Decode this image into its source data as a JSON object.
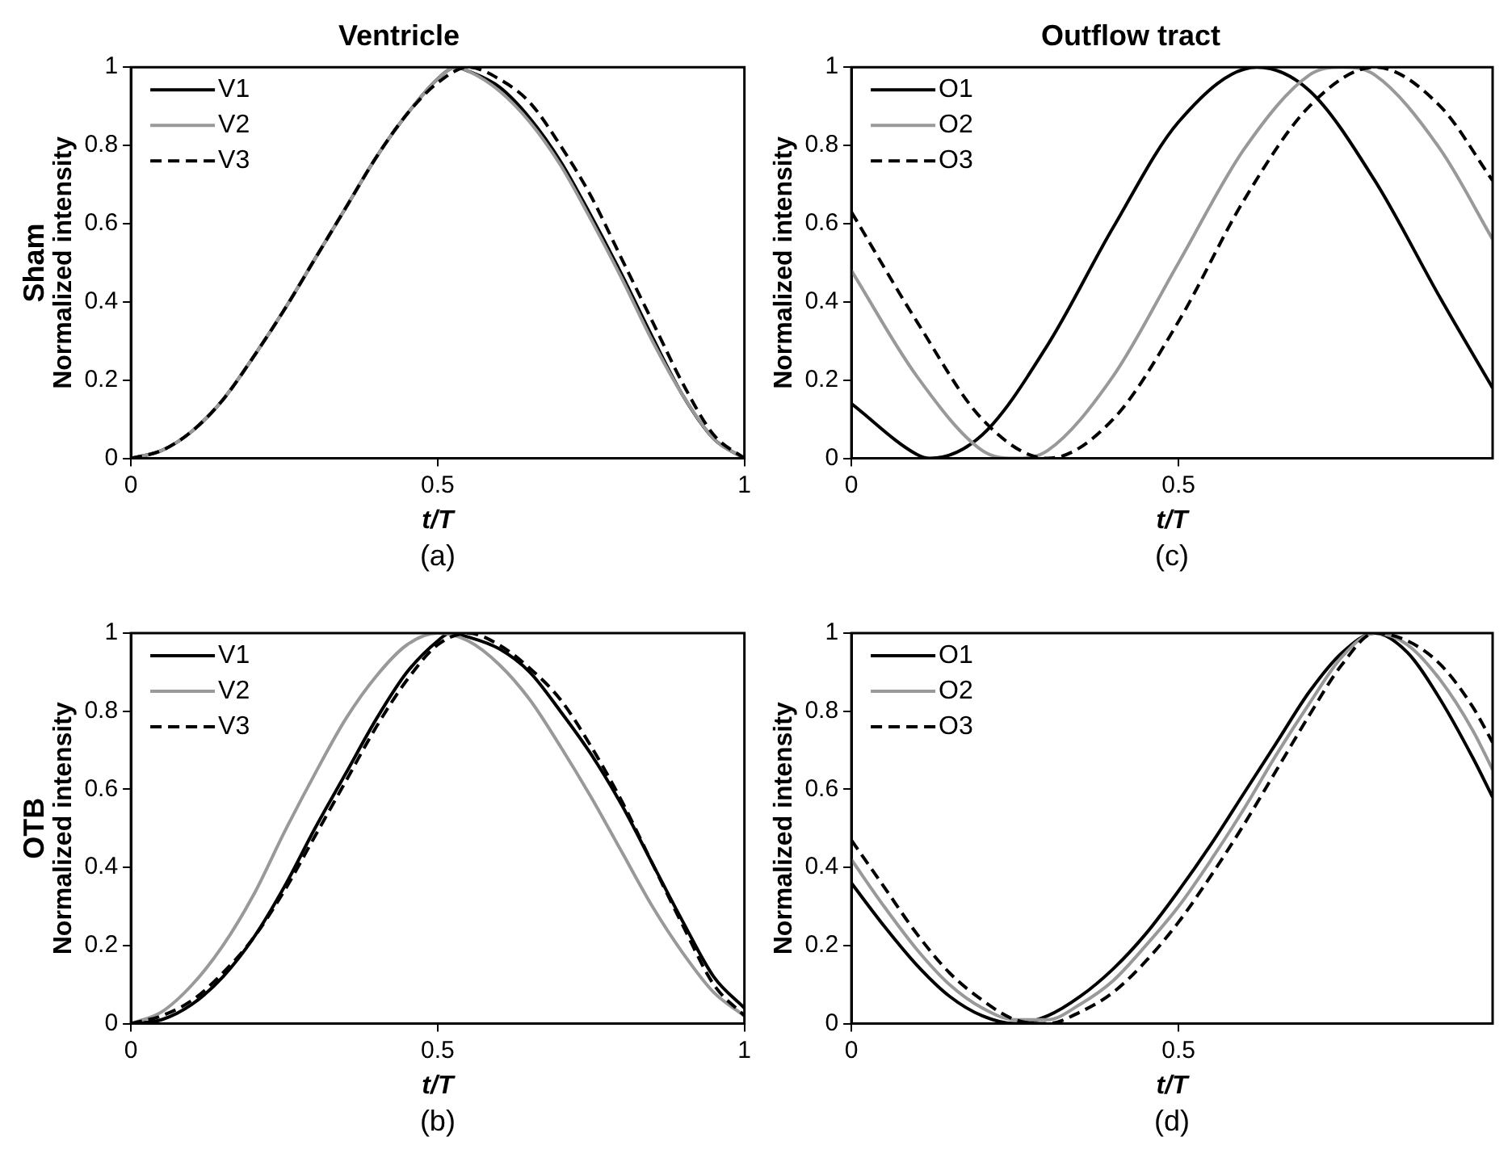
{
  "chart_data": [
    {
      "type": "line",
      "title": "Ventricle",
      "xlabel": "t/T",
      "ylabel": "Normalized intensity",
      "annotations": [
        "Sham",
        "(a)"
      ],
      "xlim": [
        0,
        1
      ],
      "xticks": [
        0,
        0.5,
        1
      ],
      "ylim": [
        0,
        1
      ],
      "yticks": [
        0,
        0.2,
        0.4,
        0.6,
        0.8,
        1
      ],
      "grid": false,
      "legend": "top left",
      "marker": "none",
      "series": [
        {
          "name": "V1",
          "color": "#000000",
          "line_style": "solid",
          "x": [
            0,
            0.05,
            0.1,
            0.15,
            0.2,
            0.25,
            0.3,
            0.35,
            0.4,
            0.45,
            0.5,
            0.53,
            0.55,
            0.6,
            0.65,
            0.7,
            0.75,
            0.8,
            0.85,
            0.9,
            0.95,
            1
          ],
          "values": [
            0,
            0.02,
            0.07,
            0.15,
            0.26,
            0.38,
            0.51,
            0.64,
            0.77,
            0.88,
            0.97,
            1,
            0.99,
            0.95,
            0.87,
            0.76,
            0.62,
            0.47,
            0.31,
            0.16,
            0.05,
            0
          ]
        },
        {
          "name": "V2",
          "color": "#999999",
          "line_style": "solid",
          "x": [
            0,
            0.05,
            0.1,
            0.15,
            0.2,
            0.25,
            0.3,
            0.35,
            0.4,
            0.45,
            0.5,
            0.53,
            0.55,
            0.6,
            0.65,
            0.7,
            0.75,
            0.8,
            0.85,
            0.9,
            0.95,
            1
          ],
          "values": [
            0,
            0.02,
            0.07,
            0.15,
            0.26,
            0.38,
            0.51,
            0.64,
            0.77,
            0.88,
            0.97,
            1,
            0.99,
            0.94,
            0.86,
            0.75,
            0.61,
            0.46,
            0.3,
            0.16,
            0.05,
            0
          ]
        },
        {
          "name": "V3",
          "color": "#000000",
          "line_style": "dashed",
          "x": [
            0,
            0.05,
            0.1,
            0.15,
            0.2,
            0.25,
            0.3,
            0.35,
            0.4,
            0.45,
            0.5,
            0.55,
            0.6,
            0.65,
            0.7,
            0.75,
            0.8,
            0.85,
            0.9,
            0.95,
            1
          ],
          "values": [
            0,
            0.02,
            0.07,
            0.15,
            0.26,
            0.38,
            0.51,
            0.64,
            0.77,
            0.88,
            0.96,
            1,
            0.97,
            0.91,
            0.8,
            0.67,
            0.51,
            0.35,
            0.19,
            0.06,
            0
          ]
        }
      ]
    },
    {
      "type": "line",
      "title": "Outflow tract",
      "xlabel": "t/T",
      "ylabel": "Normalized intensity",
      "annotations": [
        "(c)"
      ],
      "xlim": [
        0,
        0.98
      ],
      "xticks": [
        0,
        0.5
      ],
      "ylim": [
        0,
        1
      ],
      "yticks": [
        0,
        0.2,
        0.4,
        0.6,
        0.8,
        1
      ],
      "grid": false,
      "legend": "top left",
      "marker": "none",
      "series": [
        {
          "name": "O1",
          "color": "#000000",
          "line_style": "solid",
          "x": [
            0,
            0.1,
            0.12,
            0.2,
            0.3,
            0.4,
            0.5,
            0.62,
            0.7,
            0.8,
            0.9,
            0.98
          ],
          "values": [
            0.14,
            0.01,
            0,
            0.06,
            0.29,
            0.59,
            0.86,
            1,
            0.94,
            0.71,
            0.41,
            0.18
          ]
        },
        {
          "name": "O2",
          "color": "#999999",
          "line_style": "solid",
          "x": [
            0,
            0.1,
            0.2,
            0.25,
            0.3,
            0.4,
            0.5,
            0.6,
            0.7,
            0.75,
            0.8,
            0.9,
            0.98
          ],
          "values": [
            0.48,
            0.21,
            0.02,
            0,
            0.02,
            0.21,
            0.5,
            0.79,
            0.98,
            1,
            0.98,
            0.79,
            0.56
          ]
        },
        {
          "name": "O3",
          "color": "#000000",
          "line_style": "dashed",
          "x": [
            0,
            0.1,
            0.2,
            0.3,
            0.4,
            0.5,
            0.6,
            0.7,
            0.8,
            0.9,
            0.98
          ],
          "values": [
            0.63,
            0.35,
            0.1,
            0,
            0.1,
            0.35,
            0.66,
            0.9,
            1,
            0.9,
            0.71
          ]
        }
      ]
    },
    {
      "type": "line",
      "xlabel": "t/T",
      "ylabel": "Normalized intensity",
      "annotations": [
        "OTB",
        "(b)"
      ],
      "xlim": [
        0,
        1
      ],
      "xticks": [
        0,
        0.5,
        1
      ],
      "ylim": [
        0,
        1
      ],
      "yticks": [
        0,
        0.2,
        0.4,
        0.6,
        0.8,
        1
      ],
      "grid": false,
      "legend": "top left",
      "marker": "none",
      "series": [
        {
          "name": "V1",
          "color": "#000000",
          "line_style": "solid",
          "x": [
            0,
            0.05,
            0.1,
            0.15,
            0.2,
            0.25,
            0.3,
            0.35,
            0.4,
            0.45,
            0.5,
            0.52,
            0.55,
            0.6,
            0.65,
            0.7,
            0.75,
            0.8,
            0.85,
            0.9,
            0.95,
            1
          ],
          "values": [
            0,
            0.01,
            0.05,
            0.12,
            0.22,
            0.35,
            0.5,
            0.64,
            0.78,
            0.9,
            0.98,
            1,
            0.99,
            0.96,
            0.9,
            0.8,
            0.69,
            0.56,
            0.41,
            0.26,
            0.12,
            0.04
          ]
        },
        {
          "name": "V2",
          "color": "#999999",
          "line_style": "solid",
          "x": [
            0,
            0.05,
            0.1,
            0.15,
            0.2,
            0.25,
            0.3,
            0.35,
            0.4,
            0.45,
            0.5,
            0.55,
            0.6,
            0.65,
            0.7,
            0.75,
            0.8,
            0.85,
            0.9,
            0.95,
            1
          ],
          "values": [
            0,
            0.03,
            0.1,
            0.2,
            0.33,
            0.49,
            0.64,
            0.78,
            0.89,
            0.97,
            1,
            0.98,
            0.92,
            0.83,
            0.71,
            0.58,
            0.44,
            0.3,
            0.18,
            0.08,
            0.02
          ]
        },
        {
          "name": "V3",
          "color": "#000000",
          "line_style": "dashed",
          "x": [
            0,
            0.05,
            0.1,
            0.15,
            0.2,
            0.25,
            0.3,
            0.35,
            0.4,
            0.45,
            0.5,
            0.55,
            0.6,
            0.65,
            0.7,
            0.75,
            0.8,
            0.85,
            0.9,
            0.95,
            1
          ],
          "values": [
            0,
            0.02,
            0.06,
            0.13,
            0.22,
            0.34,
            0.48,
            0.62,
            0.76,
            0.88,
            0.97,
            1,
            0.97,
            0.91,
            0.83,
            0.71,
            0.57,
            0.41,
            0.25,
            0.1,
            0.02
          ]
        }
      ]
    },
    {
      "type": "line",
      "xlabel": "t/T",
      "ylabel": "Normalized intensity",
      "annotations": [
        "(d)"
      ],
      "xlim": [
        0,
        0.98
      ],
      "xticks": [
        0,
        0.5
      ],
      "ylim": [
        0,
        1
      ],
      "yticks": [
        0,
        0.2,
        0.4,
        0.6,
        0.8,
        1
      ],
      "grid": false,
      "legend": "top left",
      "marker": "none",
      "series": [
        {
          "name": "O1",
          "color": "#000000",
          "line_style": "solid",
          "x": [
            0,
            0.05,
            0.1,
            0.15,
            0.2,
            0.25,
            0.3,
            0.35,
            0.4,
            0.45,
            0.5,
            0.55,
            0.6,
            0.65,
            0.7,
            0.75,
            0.8,
            0.85,
            0.9,
            0.95,
            0.98
          ],
          "values": [
            0.36,
            0.25,
            0.15,
            0.07,
            0.02,
            0,
            0.02,
            0.07,
            0.14,
            0.23,
            0.34,
            0.46,
            0.59,
            0.72,
            0.85,
            0.95,
            1,
            0.95,
            0.83,
            0.68,
            0.58
          ]
        },
        {
          "name": "O2",
          "color": "#999999",
          "line_style": "solid",
          "x": [
            0,
            0.05,
            0.1,
            0.15,
            0.2,
            0.25,
            0.3,
            0.35,
            0.4,
            0.45,
            0.5,
            0.55,
            0.6,
            0.65,
            0.7,
            0.75,
            0.8,
            0.85,
            0.9,
            0.95,
            0.98
          ],
          "values": [
            0.42,
            0.3,
            0.19,
            0.1,
            0.04,
            0.01,
            0.01,
            0.05,
            0.11,
            0.2,
            0.3,
            0.42,
            0.55,
            0.69,
            0.82,
            0.94,
            1,
            0.97,
            0.88,
            0.75,
            0.65
          ]
        },
        {
          "name": "O3",
          "color": "#000000",
          "line_style": "dashed",
          "x": [
            0,
            0.05,
            0.1,
            0.15,
            0.2,
            0.25,
            0.3,
            0.35,
            0.4,
            0.45,
            0.5,
            0.55,
            0.6,
            0.65,
            0.7,
            0.75,
            0.8,
            0.85,
            0.9,
            0.95,
            0.98
          ],
          "values": [
            0.47,
            0.35,
            0.23,
            0.13,
            0.06,
            0.01,
            0,
            0.03,
            0.08,
            0.16,
            0.26,
            0.38,
            0.51,
            0.65,
            0.79,
            0.92,
            1,
            0.98,
            0.92,
            0.81,
            0.72
          ]
        }
      ]
    }
  ]
}
